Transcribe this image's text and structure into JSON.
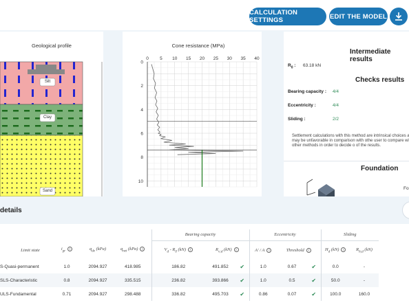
{
  "toolbar": {
    "calculation_settings": "CALCULATION SETTINGS",
    "edit_model": "EDIT THE MODEL"
  },
  "geo_profile": {
    "title": "Geological profile",
    "layers": [
      "Silt",
      "Clay",
      "Sand"
    ]
  },
  "cone": {
    "title": "Cone resistance (MPa)",
    "x_ticks": [
      "0",
      "5",
      "10",
      "15",
      "20",
      "25",
      "30",
      "35",
      "40"
    ],
    "y_ticks": [
      "0",
      "2",
      "4",
      "6",
      "8",
      "10"
    ]
  },
  "chart_data": {
    "type": "line",
    "title": "Cone resistance (MPa)",
    "xlabel": "",
    "ylabel": "",
    "xlim": [
      0,
      40
    ],
    "ylim": [
      10.5,
      0
    ],
    "grid": true,
    "series": [
      {
        "x": [
          1.5,
          2.0,
          2.5,
          2.2,
          3.0,
          2.6,
          3.4,
          2.8,
          3.5,
          3.0,
          3.8,
          3.2,
          4.0,
          3.4,
          4.2,
          3.6,
          4.5,
          3.8,
          4.6,
          4.0,
          5.0,
          4.5,
          6.5,
          5.0,
          9.0,
          6.0,
          14.0,
          8.0,
          17.0,
          10.0,
          15.0,
          8.0,
          35.0,
          15.0,
          25.0,
          11.0
        ],
        "y": [
          0.2,
          0.6,
          1.0,
          1.4,
          1.8,
          2.2,
          2.6,
          3.0,
          3.3,
          3.6,
          3.9,
          4.2,
          4.5,
          4.8,
          5.1,
          5.3,
          5.5,
          5.7,
          5.9,
          6.0,
          6.1,
          6.2,
          6.3,
          6.45,
          6.6,
          6.75,
          6.9,
          7.0,
          7.1,
          7.2,
          7.3,
          7.4,
          7.5,
          7.6,
          7.7,
          7.8
        ]
      }
    ]
  },
  "intermediate": {
    "title": "Intermediate results",
    "r0_label": "R",
    "r0_sub": "0",
    "r0_value": "63.18 kN"
  },
  "checks": {
    "title": "Checks results",
    "items": [
      {
        "label": "Bearing capacity :",
        "value": "4/4"
      },
      {
        "label": "Eccentricity :",
        "value": "4/4"
      },
      {
        "label": "Sliding :",
        "value": "2/2"
      }
    ],
    "note": "Settlement calculations with this method are intrinsical choices and may be unfavorable in comparison with othe user to compare with other methods in order to decide o of the results."
  },
  "foundation": {
    "title": "Foundation",
    "cut_label": "Fo"
  },
  "details": {
    "title": "details",
    "groups": {
      "bearing": "Bearing capacity",
      "eccentricity": "Eccentricity",
      "sliding": "Sliding"
    },
    "headers": {
      "limit_state": "Limit state",
      "igr": "i",
      "igr_sub": "gr",
      "qde": "q",
      "qde_sub": "de",
      "qde_unit": " (kPa)",
      "qnet": "q",
      "qnet_sub": "net",
      "qnet_unit": " (kPa)",
      "vd": "V",
      "vd_sub": "d",
      "vd_rest": " - R",
      "vd_sub2": "0",
      "vd_unit": " (kN)",
      "rvd": "R",
      "rvd_sub": "v;d",
      "rvd_unit": " (kN)",
      "ecc": "A′ / A",
      "threshold": "Threshold",
      "hd": "H",
      "hd_sub": "d",
      "hd_unit": " (kN)",
      "rhd": "R",
      "rhd_sub": "h;d",
      "rhd_unit": " (kN)"
    },
    "rows": [
      {
        "state": "S-Quasi-permanent",
        "igr": "1.0",
        "qde": "2094.927",
        "qnet": "418.985",
        "vd": "186.82",
        "rvd": "491.852",
        "ecc": "1.0",
        "thr": "0.67",
        "hd": "0.0",
        "rhd": "-"
      },
      {
        "state": "SLS-Characteristic",
        "igr": "0.8",
        "qde": "2094.927",
        "qnet": "335.515",
        "vd": "236.82",
        "rvd": "393.866",
        "ecc": "1.0",
        "thr": "0.5",
        "hd": "50.0",
        "rhd": "-"
      },
      {
        "state": "ULS-Fundamental",
        "igr": "0.71",
        "qde": "2094.927",
        "qnet": "298.488",
        "vd": "336.82",
        "rvd": "495.703",
        "ecc": "0.86",
        "thr": "0.07",
        "hd": "100.0",
        "rhd": "160.0"
      }
    ],
    "check_mark": "✔"
  }
}
